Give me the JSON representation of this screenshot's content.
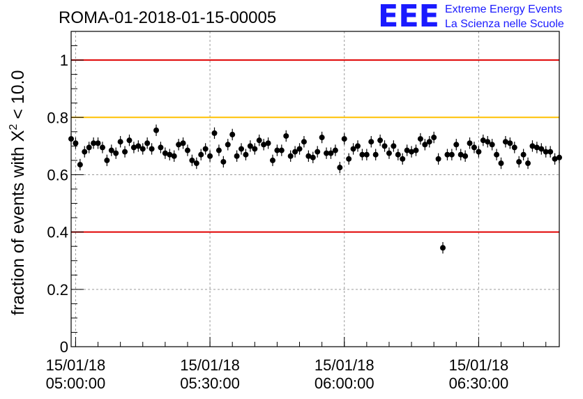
{
  "chart_data": {
    "type": "scatter",
    "title": "ROMA-01-2018-01-15-00005",
    "ylabel": "fraction of events with",
    "ylabel_symbol": "X",
    "ylabel_exp": "2",
    "ylabel_suffix": " < 10.0",
    "xlabel": "",
    "ylim": [
      0,
      1.1
    ],
    "xlim": [
      "2018-01-15T04:59:00",
      "2018-01-15T06:48:00"
    ],
    "grid": true,
    "y_ticks": [
      {
        "value": 0,
        "label": "0"
      },
      {
        "value": 0.2,
        "label": "0.2"
      },
      {
        "value": 0.4,
        "label": "0.4"
      },
      {
        "value": 0.6,
        "label": "0.6"
      },
      {
        "value": 0.8,
        "label": "0.8"
      },
      {
        "value": 1,
        "label": "1"
      }
    ],
    "x_ticks": [
      {
        "time": "2018-01-15T05:00:00",
        "date": "15/01/18",
        "clock": "05:00:00"
      },
      {
        "time": "2018-01-15T05:30:00",
        "date": "15/01/18",
        "clock": "05:30:00"
      },
      {
        "time": "2018-01-15T06:00:00",
        "date": "15/01/18",
        "clock": "06:00:00"
      },
      {
        "time": "2018-01-15T06:30:00",
        "date": "15/01/18",
        "clock": "06:30:00"
      }
    ],
    "reference_lines": [
      {
        "y": 1.0,
        "color": "#e00000"
      },
      {
        "y": 0.8,
        "color": "#ffc000"
      },
      {
        "y": 0.4,
        "color": "#e00000"
      }
    ],
    "series": [
      {
        "color": "#000000",
        "error": 0.02,
        "x_start": "2018-01-15T04:59:00",
        "x_step_minutes": 1,
        "values": [
          0.725,
          0.71,
          0.635,
          0.68,
          0.695,
          0.71,
          0.71,
          0.695,
          0.65,
          0.685,
          0.675,
          0.715,
          0.68,
          0.72,
          0.695,
          0.7,
          0.69,
          0.71,
          0.69,
          0.755,
          0.695,
          0.675,
          0.67,
          0.665,
          0.705,
          0.71,
          0.685,
          0.65,
          0.64,
          0.67,
          0.69,
          0.665,
          0.745,
          0.685,
          0.645,
          0.705,
          0.74,
          0.665,
          0.69,
          0.67,
          0.7,
          0.69,
          0.72,
          0.705,
          0.71,
          0.65,
          0.685,
          0.685,
          0.735,
          0.665,
          0.68,
          0.69,
          0.715,
          0.665,
          0.66,
          0.68,
          0.73,
          0.675,
          0.675,
          0.685,
          0.625,
          0.725,
          0.655,
          0.69,
          0.7,
          0.67,
          0.67,
          0.715,
          0.67,
          0.72,
          0.7,
          0.675,
          0.7,
          0.67,
          0.655,
          0.685,
          0.68,
          0.685,
          0.725,
          0.705,
          0.715,
          0.73,
          0.655,
          0.345,
          0.67,
          0.67,
          0.705,
          0.67,
          0.665,
          0.71,
          0.695,
          0.68,
          0.72,
          0.715,
          0.705,
          0.67,
          0.64,
          0.715,
          0.71,
          0.695,
          0.645,
          0.67,
          0.64,
          0.7,
          0.695,
          0.69,
          0.68,
          0.68,
          0.655,
          0.66
        ]
      }
    ]
  },
  "logo": {
    "letters": "EEE",
    "line1": "Extreme Energy Events",
    "line2": "La Scienza nelle Scuole"
  }
}
